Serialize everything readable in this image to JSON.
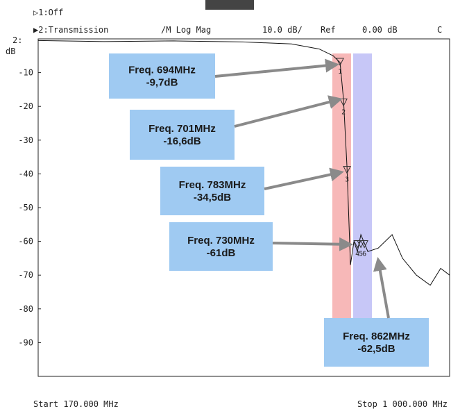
{
  "chart_data": {
    "type": "line",
    "header": {
      "channel1": "▷1:Off",
      "channel2": "▶2:Transmission",
      "format": "/M Log Mag",
      "scale": "10.0 dB/",
      "ref_label": "Ref",
      "ref_value": "0.00 dB",
      "flag": "C"
    },
    "y_channel": "2:",
    "y_unit": "dB",
    "start": "Start 170.000 MHz",
    "stop": "Stop 1 000.000 MHz",
    "xlim": [
      170,
      1000
    ],
    "ylim": [
      -100,
      0
    ],
    "yticks": [
      -10,
      -20,
      -30,
      -40,
      -50,
      -60,
      -70,
      -80,
      -90
    ],
    "x": [
      170,
      303,
      443,
      583,
      681,
      737,
      765,
      779,
      786,
      793,
      800,
      807,
      814,
      821,
      835,
      856,
      870,
      884,
      905,
      933,
      961,
      982,
      1000
    ],
    "values": [
      -0.5,
      -0.8,
      -0.6,
      -0.9,
      -1.5,
      -3,
      -5,
      -7,
      -18,
      -38,
      -67,
      -60,
      -63,
      -58,
      -63,
      -62,
      -60,
      -58,
      -65,
      -70,
      -73,
      -68,
      -70
    ],
    "color": "#111111",
    "markers": {
      "labels": [
        "1",
        "2",
        "3",
        "4",
        "5",
        "6"
      ],
      "x": [
        779,
        786,
        793,
        814,
        821,
        828
      ],
      "values": [
        -7,
        -19,
        -39,
        -61,
        -61,
        -61
      ]
    },
    "annotations": [
      {
        "freq": "Freq. 694MHz",
        "level": "-9,7dB"
      },
      {
        "freq": "Freq. 701MHz",
        "level": "-16,6dB"
      },
      {
        "freq": "Freq. 783MHz",
        "level": "-34,5dB"
      },
      {
        "freq": "Freq. 730MHz",
        "level": "-61dB"
      },
      {
        "freq": "Freq. 862MHz",
        "level": "-62,5dB"
      }
    ]
  }
}
